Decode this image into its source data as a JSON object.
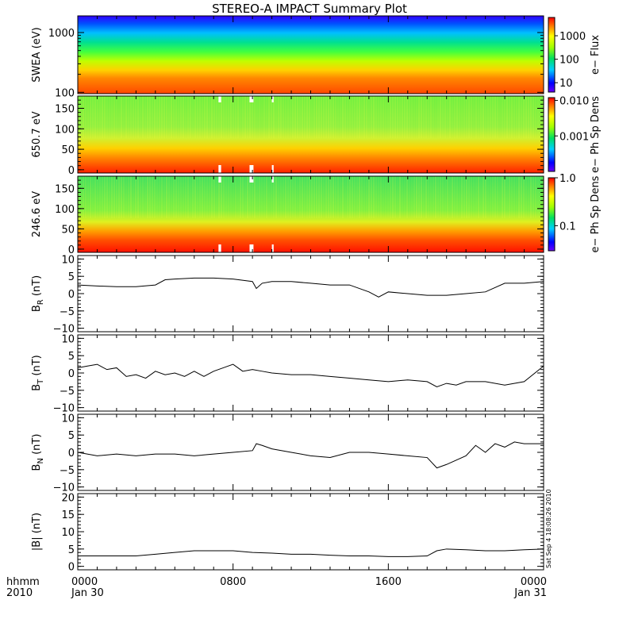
{
  "title": "STEREO-A IMPACT Summary Plot",
  "x_axis": {
    "label_line1": "hhmm",
    "label_line2": "2010",
    "ticks": [
      {
        "value": 0,
        "line1": "0000",
        "line2": "Jan 30"
      },
      {
        "value": 8,
        "line1": "0800",
        "line2": ""
      },
      {
        "value": 16,
        "line1": "1600",
        "line2": ""
      },
      {
        "value": 24,
        "line1": "0000",
        "line2": "Jan 31"
      }
    ],
    "range_hours": [
      0,
      24
    ]
  },
  "timestamp": "Sat Sep  4 18:08:26 2010",
  "colors": {
    "line": "#000000",
    "axis": "#000000",
    "gap": "#ffffff"
  },
  "chart_data": [
    {
      "type": "heatmap",
      "ylabel": "SWEA (eV)",
      "yscale": "log",
      "ylim": [
        95,
        1900
      ],
      "yticks": [
        "100",
        "1000"
      ],
      "colorbar": {
        "label": "e− Flux",
        "scale": "log",
        "range": [
          4,
          6000
        ],
        "ticks": [
          "10",
          "100",
          "1000"
        ]
      }
    },
    {
      "type": "heatmap",
      "ylabel": "650.7 eV",
      "ylim": [
        -8,
        180
      ],
      "yticks": [
        "0",
        "50",
        "100",
        "150"
      ],
      "colorbar": {
        "label": "e− Ph Sp Dens",
        "scale": "log",
        "range": [
          0.0001,
          0.012
        ],
        "ticks": [
          "0.001",
          "0.010"
        ]
      },
      "gaps_hours": [
        [
          7.25,
          7.55
        ],
        [
          8.85,
          9.3
        ],
        [
          10.0,
          10.2
        ]
      ]
    },
    {
      "type": "heatmap",
      "ylabel": "246.6 eV",
      "ylim": [
        -8,
        180
      ],
      "yticks": [
        "0",
        "50",
        "100",
        "150"
      ],
      "colorbar": {
        "label": "e− Ph Sp Dens",
        "scale": "log",
        "range": [
          0.03,
          1.0
        ],
        "ticks": [
          "0.1",
          "1.0"
        ]
      },
      "gaps_hours": [
        [
          7.25,
          7.55
        ],
        [
          8.85,
          9.3
        ],
        [
          10.0,
          10.2
        ]
      ]
    },
    {
      "type": "line",
      "ylabel": "B",
      "ylabel_sub": "R",
      "ylabel_unit": "(nT)",
      "ylim": [
        -11,
        11
      ],
      "yticks": [
        "−10",
        "−5",
        "0",
        "5",
        "10"
      ],
      "x": [
        0,
        1,
        2,
        3,
        4,
        4.5,
        5,
        6,
        7,
        8,
        9,
        9.2,
        9.5,
        10,
        11,
        12,
        13,
        14,
        15,
        15.5,
        16,
        17,
        18,
        19,
        20,
        21,
        22,
        23,
        24
      ],
      "values": [
        2.5,
        2.2,
        2.0,
        2.0,
        2.5,
        4.0,
        4.2,
        4.5,
        4.5,
        4.2,
        3.5,
        1.5,
        3.0,
        3.5,
        3.5,
        3.0,
        2.5,
        2.5,
        0.5,
        -1.0,
        0.5,
        0.0,
        -0.5,
        -0.5,
        0.0,
        0.5,
        3.0,
        3.0,
        3.5
      ]
    },
    {
      "type": "line",
      "ylabel": "B",
      "ylabel_sub": "T",
      "ylabel_unit": "(nT)",
      "ylim": [
        -11,
        11
      ],
      "yticks": [
        "−10",
        "−5",
        "0",
        "5",
        "10"
      ],
      "x": [
        0,
        0.5,
        1,
        1.5,
        2,
        2.5,
        3,
        3.5,
        4,
        4.5,
        5,
        5.5,
        6,
        6.5,
        7,
        7.5,
        8,
        8.5,
        9,
        9.5,
        10,
        11,
        12,
        13,
        14,
        15,
        16,
        17,
        18,
        18.5,
        19,
        19.5,
        20,
        21,
        22,
        23,
        24
      ],
      "values": [
        1.5,
        2.0,
        2.5,
        1.0,
        1.5,
        -1.0,
        -0.5,
        -1.5,
        0.5,
        -0.5,
        0.0,
        -1.0,
        0.5,
        -1.0,
        0.5,
        1.5,
        2.5,
        0.5,
        1.0,
        0.5,
        0.0,
        -0.5,
        -0.5,
        -1.0,
        -1.5,
        -2.0,
        -2.5,
        -2.0,
        -2.5,
        -4.0,
        -3.0,
        -3.5,
        -2.5,
        -2.5,
        -3.5,
        -2.5,
        2.0
      ]
    },
    {
      "type": "line",
      "ylabel": "B",
      "ylabel_sub": "N",
      "ylabel_unit": "(nT)",
      "ylim": [
        -11,
        11
      ],
      "yticks": [
        "−10",
        "−5",
        "0",
        "5",
        "10"
      ],
      "x": [
        0,
        1,
        2,
        3,
        4,
        5,
        6,
        7,
        8,
        9,
        9.2,
        9.5,
        10,
        11,
        12,
        13,
        14,
        15,
        16,
        17,
        18,
        18.5,
        19,
        20,
        20.5,
        21,
        21.5,
        22,
        22.5,
        23,
        24
      ],
      "values": [
        0.0,
        -1.0,
        -0.5,
        -1.0,
        -0.5,
        -0.5,
        -1.0,
        -0.5,
        0.0,
        0.5,
        2.5,
        2.0,
        1.0,
        0.0,
        -1.0,
        -1.5,
        0.0,
        0.0,
        -0.5,
        -1.0,
        -1.5,
        -4.5,
        -3.5,
        -1.0,
        2.0,
        0.0,
        2.5,
        1.5,
        3.0,
        2.5,
        2.5
      ]
    },
    {
      "type": "line",
      "ylabel": "|B|",
      "ylabel_unit": "(nT)",
      "ylim": [
        -1,
        21
      ],
      "yticks": [
        "0",
        "5",
        "10",
        "15",
        "20"
      ],
      "x": [
        0,
        1,
        2,
        3,
        4,
        5,
        6,
        7,
        8,
        9,
        10,
        11,
        12,
        13,
        14,
        15,
        16,
        17,
        18,
        18.5,
        19,
        20,
        21,
        22,
        23,
        24
      ],
      "values": [
        3.0,
        3.0,
        3.0,
        3.0,
        3.5,
        4.0,
        4.5,
        4.5,
        4.5,
        4.0,
        3.8,
        3.5,
        3.5,
        3.2,
        3.0,
        3.0,
        2.8,
        2.8,
        3.0,
        4.5,
        5.0,
        4.8,
        4.5,
        4.5,
        4.8,
        5.0
      ]
    }
  ]
}
